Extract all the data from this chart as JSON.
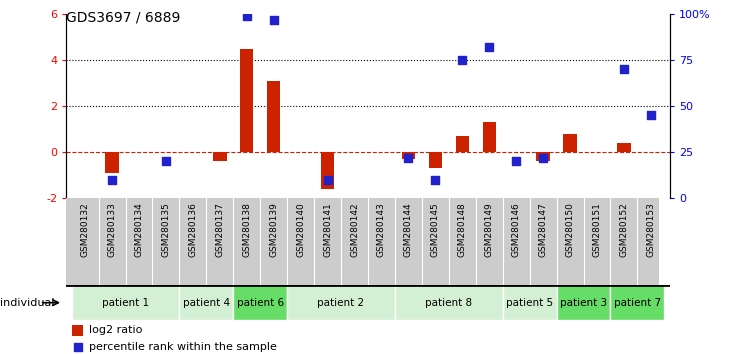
{
  "title": "GDS3697 / 6889",
  "samples": [
    "GSM280132",
    "GSM280133",
    "GSM280134",
    "GSM280135",
    "GSM280136",
    "GSM280137",
    "GSM280138",
    "GSM280139",
    "GSM280140",
    "GSM280141",
    "GSM280142",
    "GSM280143",
    "GSM280144",
    "GSM280145",
    "GSM280148",
    "GSM280149",
    "GSM280146",
    "GSM280147",
    "GSM280150",
    "GSM280151",
    "GSM280152",
    "GSM280153"
  ],
  "log2_ratio": [
    0,
    -0.9,
    0,
    0,
    0,
    -0.4,
    4.5,
    3.1,
    0,
    -1.6,
    0,
    0,
    -0.3,
    -0.7,
    0.7,
    1.3,
    0,
    -0.4,
    0.8,
    0,
    0.4,
    0
  ],
  "percentile_rank": [
    null,
    10,
    null,
    20,
    null,
    null,
    99,
    97,
    null,
    10,
    null,
    null,
    22,
    10,
    75,
    82,
    20,
    22,
    null,
    null,
    70,
    45
  ],
  "patients": [
    {
      "label": "patient 1",
      "start": 0,
      "end": 4,
      "color": "#d4f0d4"
    },
    {
      "label": "patient 4",
      "start": 4,
      "end": 6,
      "color": "#d4f0d4"
    },
    {
      "label": "patient 6",
      "start": 6,
      "end": 8,
      "color": "#66dd66"
    },
    {
      "label": "patient 2",
      "start": 8,
      "end": 12,
      "color": "#d4f0d4"
    },
    {
      "label": "patient 8",
      "start": 12,
      "end": 16,
      "color": "#d4f0d4"
    },
    {
      "label": "patient 5",
      "start": 16,
      "end": 18,
      "color": "#d4f0d4"
    },
    {
      "label": "patient 3",
      "start": 18,
      "end": 20,
      "color": "#66dd66"
    },
    {
      "label": "patient 7",
      "start": 20,
      "end": 22,
      "color": "#66dd66"
    }
  ],
  "ylim_left": [
    -2,
    6
  ],
  "ylim_right": [
    0,
    100
  ],
  "bar_color": "#cc2200",
  "dot_color": "#2222cc",
  "hline_color": "#cc2200",
  "dotline1": 4.0,
  "dotline2": 2.0,
  "bar_width": 0.5,
  "dot_size": 30,
  "legend_log2": "log2 ratio",
  "legend_pct": "percentile rank within the sample",
  "sample_bg": "#cccccc"
}
